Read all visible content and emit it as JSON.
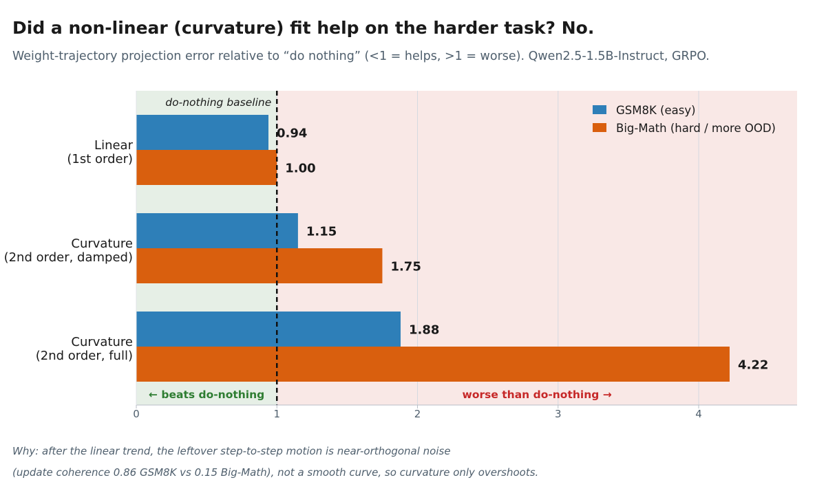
{
  "title": "Did a non-linear (curvature) fit help on the harder task?  No.",
  "subtitle": "Weight-trajectory projection error relative to “do nothing” (<1 = helps, >1 = worse). Qwen2.5-1.5B-Instruct, GRPO.",
  "footnote": {
    "line1": "Why: after the linear trend, the leftover step-to-step motion is near-orthogonal noise",
    "line2": "(update coherence 0.86 GSM8K vs 0.15 Big-Math), not a smooth curve, so curvature only overshoots."
  },
  "chart_data": {
    "type": "bar",
    "orientation": "horizontal",
    "categories": [
      [
        "Linear",
        "(1st order)"
      ],
      [
        "Curvature",
        "(2nd order, damped)"
      ],
      [
        "Curvature",
        "(2nd order, full)"
      ]
    ],
    "series": [
      {
        "name": "GSM8K (easy)",
        "color": "#2e7fb8",
        "values": [
          0.94,
          1.15,
          1.88
        ],
        "labels": [
          "0.94",
          "1.15",
          "1.88"
        ]
      },
      {
        "name": "Big-Math (hard / more OOD)",
        "color": "#d95f0e",
        "values": [
          1.0,
          1.75,
          4.22
        ],
        "labels": [
          "1.00",
          "1.75",
          "4.22"
        ]
      }
    ],
    "xlim": [
      0,
      4.7
    ],
    "xticks": [
      "0",
      "1",
      "2",
      "3",
      "4"
    ],
    "xlabel": "",
    "ylabel": "",
    "grid": "vertical",
    "legend": "top-right",
    "baseline": {
      "value": 1,
      "label": "do-nothing baseline",
      "style": "dashed"
    },
    "regions": {
      "better": {
        "label": "← beats do-nothing",
        "color": "#e6efe6",
        "text_color": "#2e7d32"
      },
      "worse": {
        "label": "worse than do-nothing →",
        "color": "#f9e8e6",
        "text_color": "#c62828"
      }
    }
  }
}
